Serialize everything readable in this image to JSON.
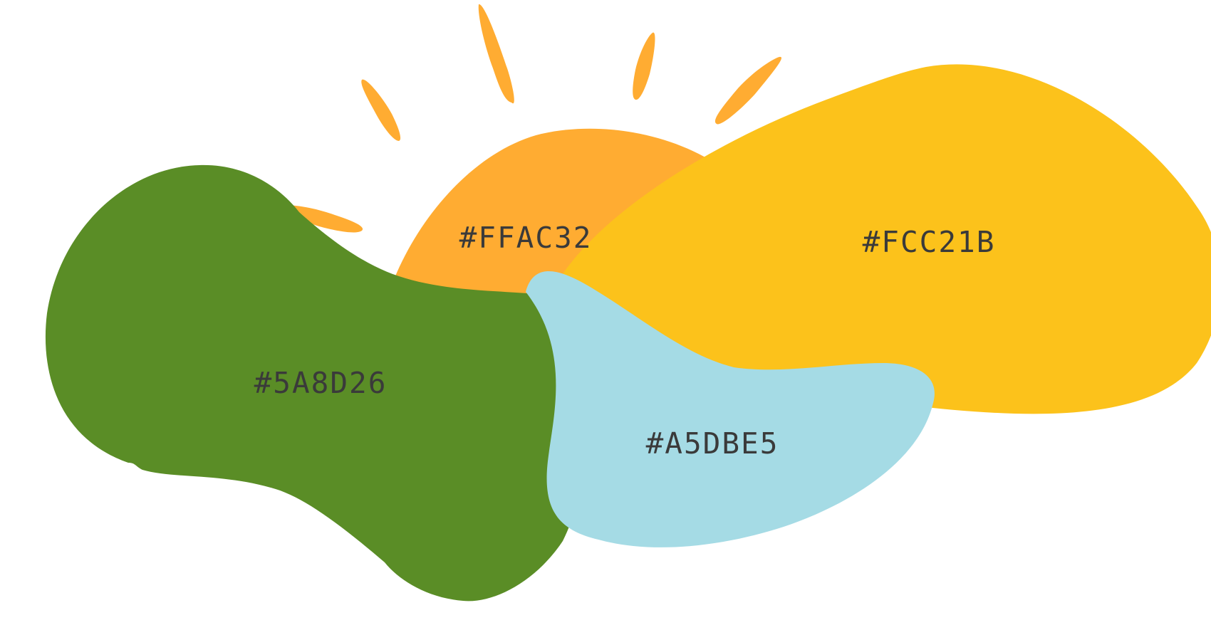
{
  "swatches": [
    {
      "id": "orange",
      "label": "#FFAC32",
      "color": "#FFAC32"
    },
    {
      "id": "yellow",
      "label": "#FCC21B",
      "color": "#FCC21B"
    },
    {
      "id": "green",
      "label": "#5A8D26",
      "color": "#5A8D26"
    },
    {
      "id": "blue",
      "label": "#A5DBE5",
      "color": "#A5DBE5"
    }
  ],
  "label_color": "#3A3A3A",
  "rays_color": "#FFAC32",
  "decoration": "sun-rays"
}
